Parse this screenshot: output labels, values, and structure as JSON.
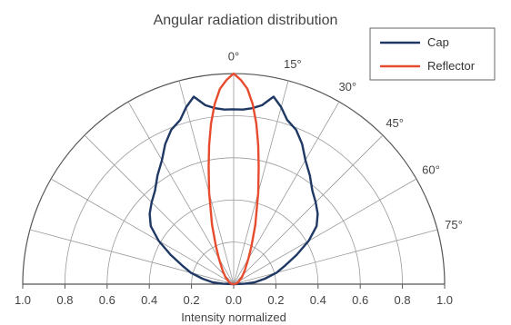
{
  "chart_data": {
    "type": "line",
    "subtype": "polar-semicircle",
    "title": "Angular radiation distribution",
    "xlabel": "Intensity normalized",
    "x_tick_labels": [
      "1.0",
      "0.8",
      "0.6",
      "0.4",
      "0.2",
      "0.0",
      "0.2",
      "0.4",
      "0.6",
      "0.8",
      "1.0"
    ],
    "angle_labels": [
      "0°",
      "15°",
      "30°",
      "45°",
      "60°",
      "75°"
    ],
    "angle_label_values": [
      0,
      15,
      30,
      45,
      60,
      75
    ],
    "radial_range": [
      0,
      1.0
    ],
    "angle_range_deg": [
      -90,
      90
    ],
    "grid": true,
    "legend_position": "top-right",
    "series": [
      {
        "name": "Cap",
        "color": "#1f3864",
        "angles_deg": [
          0,
          3,
          6,
          9,
          12,
          15,
          18,
          22,
          26,
          30,
          35,
          40,
          45,
          50,
          55,
          60,
          65,
          70,
          75,
          80,
          85,
          88,
          90
        ],
        "intensity": [
          0.83,
          0.83,
          0.84,
          0.86,
          0.91,
          0.87,
          0.82,
          0.79,
          0.74,
          0.68,
          0.63,
          0.58,
          0.55,
          0.52,
          0.48,
          0.41,
          0.33,
          0.26,
          0.21,
          0.15,
          0.1,
          0.05,
          0.0
        ]
      },
      {
        "name": "Reflector",
        "color": "#e84c2e",
        "angles_deg": [
          0,
          2,
          4,
          6,
          8,
          10,
          12,
          15,
          20,
          25,
          30,
          40,
          50,
          60,
          70,
          80,
          90
        ],
        "intensity": [
          1.0,
          0.97,
          0.93,
          0.86,
          0.77,
          0.67,
          0.57,
          0.45,
          0.3,
          0.2,
          0.14,
          0.08,
          0.05,
          0.03,
          0.02,
          0.01,
          0.0
        ]
      }
    ]
  }
}
